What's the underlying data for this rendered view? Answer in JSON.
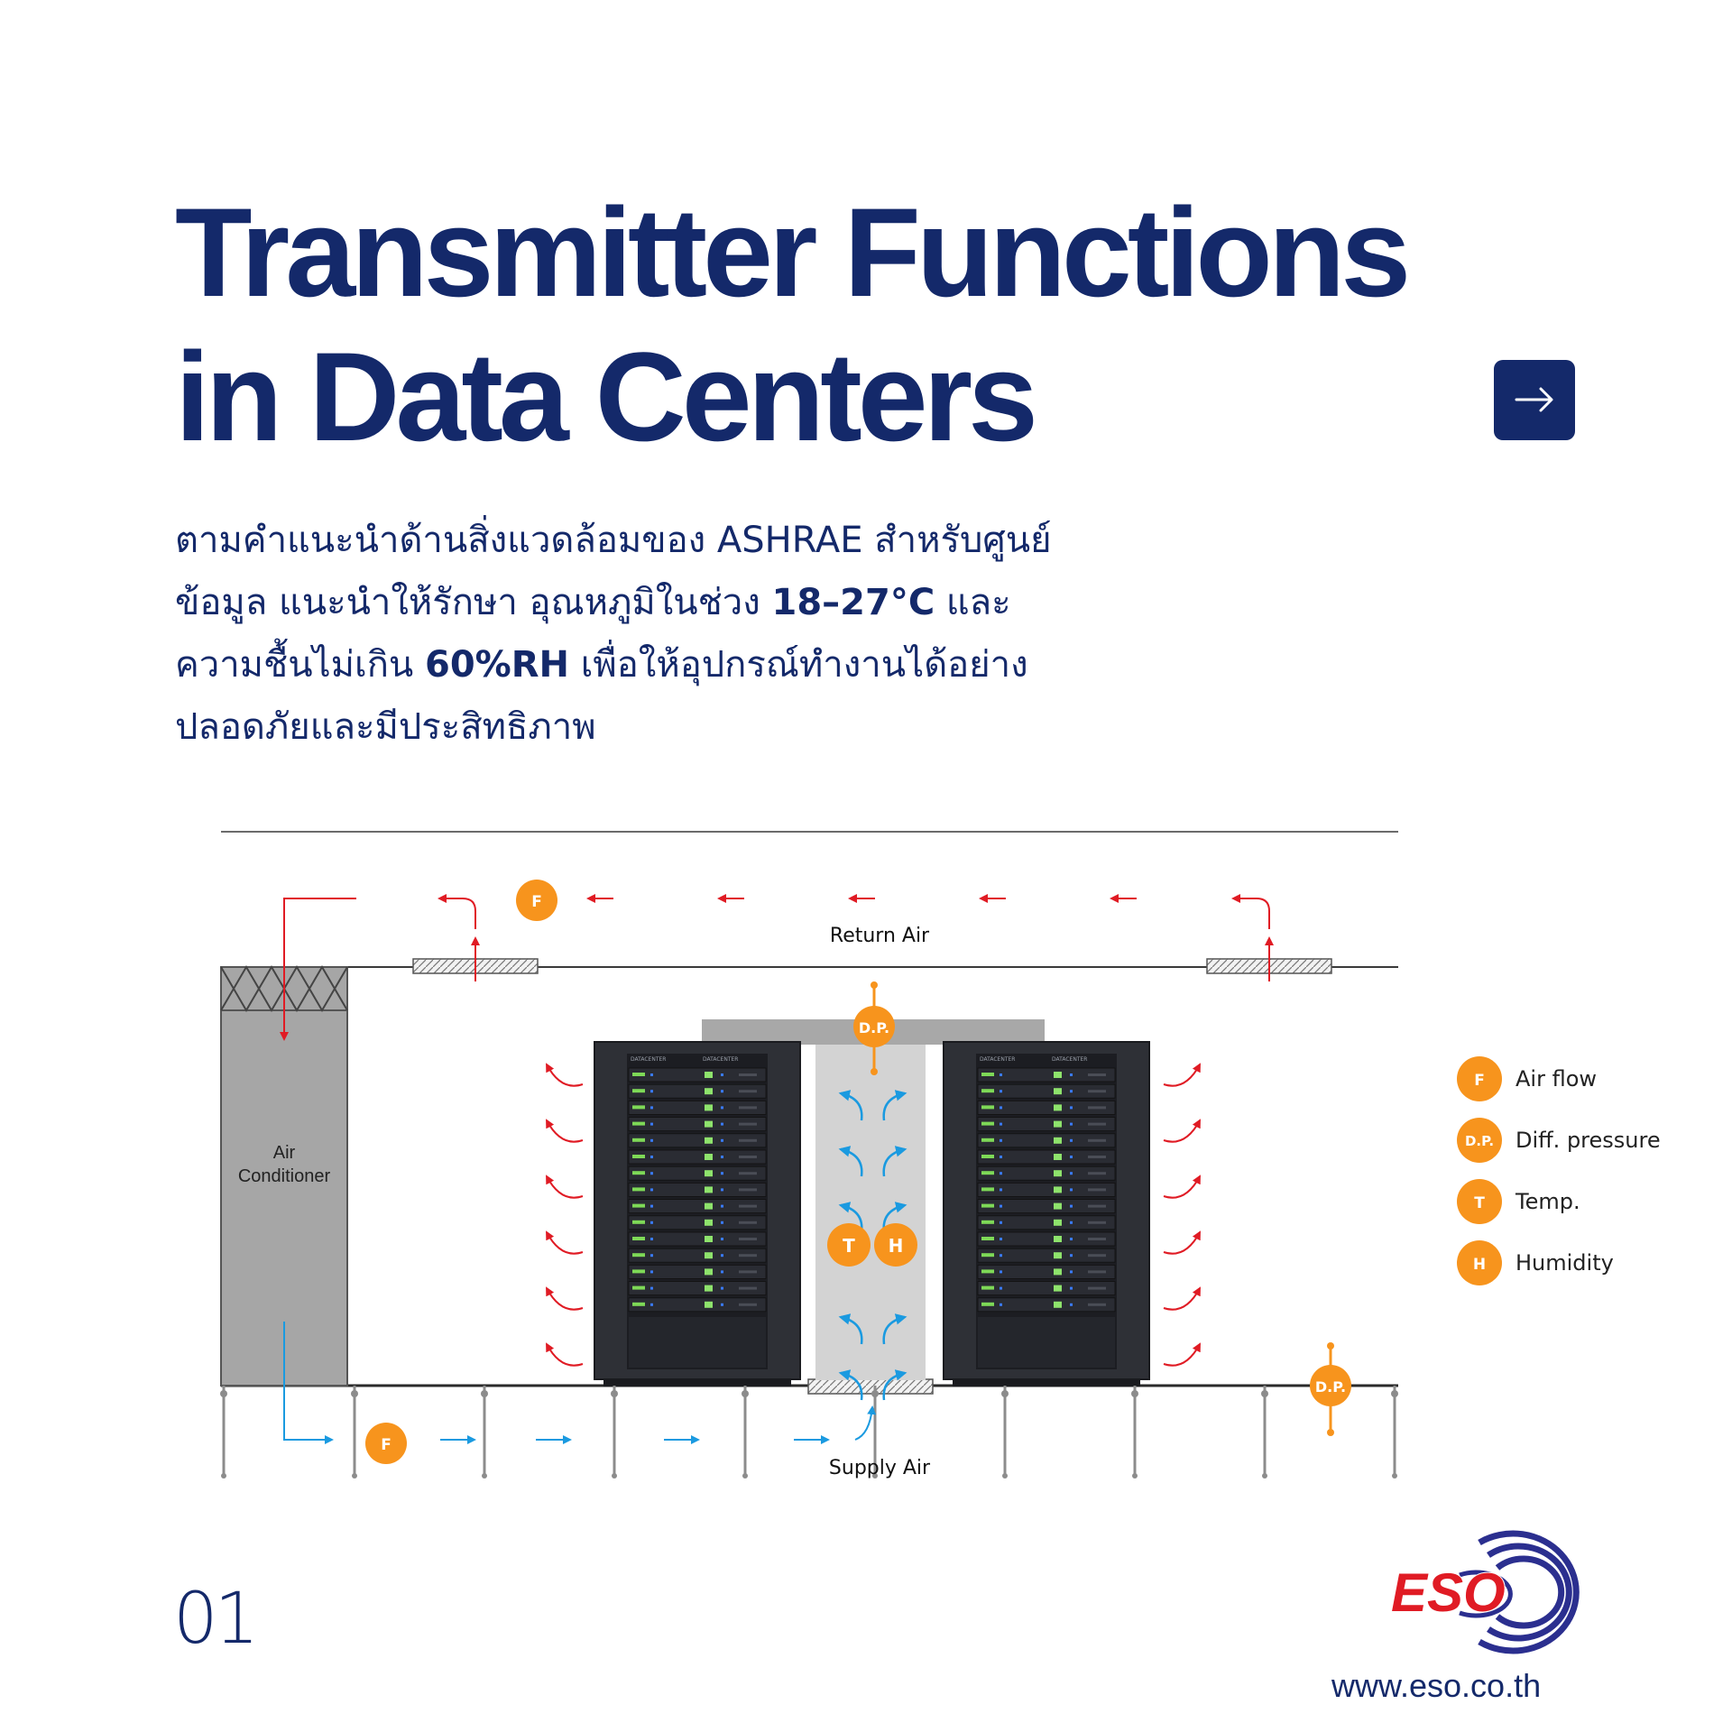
{
  "header": {
    "title_line1": "Transmitter Functions",
    "title_line2": "in Data Centers"
  },
  "description": {
    "line1": "ตามคำแนะนำด้านสิ่งแวดล้อมของ ASHRAE สำหรับศูนย์",
    "line2_a": "ข้อมูล แนะนำให้รักษา อุณหภูมิในช่วง ",
    "line2_bold": "18–27°C",
    "line2_b": " และ",
    "line3_a": "ความชื้นไม่เกิน ",
    "line3_bold": "60%RH",
    "line3_b": " เพื่อให้อุปกรณ์ทำงานได้อย่าง",
    "line4": "ปลอดภัยและมีประสิทธิภาพ"
  },
  "diagram": {
    "return_air_label": "Return Air",
    "supply_air_label": "Supply Air",
    "ac_label_line1": "Air",
    "ac_label_line2": "Conditioner",
    "rack_header_text": "DATACENTER",
    "badges": {
      "airflow": "F",
      "diff_pressure": "D.P.",
      "temperature": "T",
      "humidity": "H"
    },
    "legend": [
      {
        "symbol": "F",
        "label": "Air flow"
      },
      {
        "symbol": "D.P.",
        "label": "Diff. pressure"
      },
      {
        "symbol": "T",
        "label": "Temp."
      },
      {
        "symbol": "H",
        "label": "Humidity"
      }
    ]
  },
  "colors": {
    "navy": "#14296a",
    "sensor_orange": "#f7941d",
    "warm_air_red": "#e01b24",
    "cool_air_blue": "#1a9ae0",
    "ac_gray": "#a6a6a6",
    "logo_red": "#e01b24"
  },
  "icons": {
    "next_button": "arrow-right-icon",
    "logo": "eso-logo"
  },
  "footer": {
    "page_number": "01",
    "logo_text": "ESO",
    "website": "www.eso.co.th"
  }
}
